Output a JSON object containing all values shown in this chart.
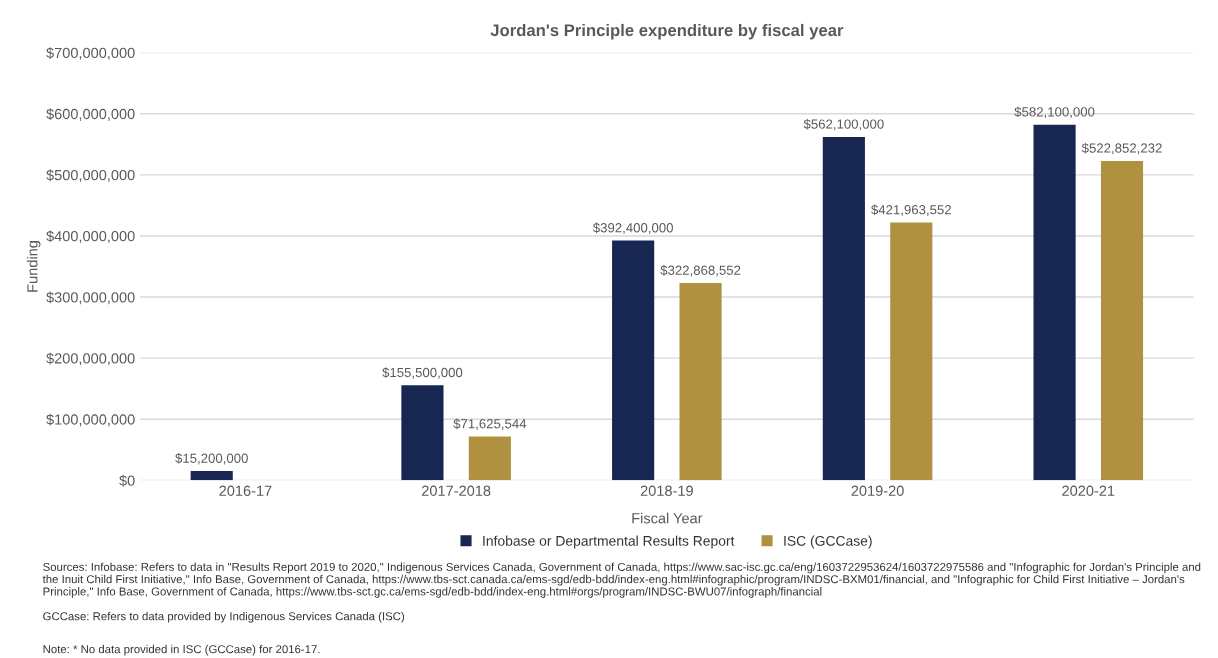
{
  "chart_data": {
    "type": "bar",
    "title": "Jordan's Principle expenditure by fiscal year",
    "xlabel": "Fiscal Year",
    "ylabel": "Funding",
    "categories": [
      "2016-17",
      "2017-2018",
      "2018-19",
      "2019-20",
      "2020-21"
    ],
    "series": [
      {
        "name": "Infobase or Departmental Results Report",
        "color": "#172751",
        "values": [
          15200000,
          155500000,
          392400000,
          562100000,
          582100000
        ],
        "value_labels": [
          "$15,200,000",
          "$155,500,000",
          "$392,400,000",
          "$562,100,000",
          "$582,100,000"
        ]
      },
      {
        "name": "ISC (GCCase)",
        "color": "#b09140",
        "values": [
          null,
          71625544,
          322868552,
          421963552,
          522852232
        ],
        "value_labels": [
          null,
          "$71,625,544",
          "$322,868,552",
          "$421,963,552",
          "$522,852,232"
        ]
      }
    ],
    "ylim": [
      0,
      700000000
    ],
    "yticks": [
      {
        "value": 0,
        "label": "$0"
      },
      {
        "value": 100000000,
        "label": "$100,000,000"
      },
      {
        "value": 200000000,
        "label": "$200,000,000"
      },
      {
        "value": 300000000,
        "label": "$300,000,000"
      },
      {
        "value": 400000000,
        "label": "$400,000,000"
      },
      {
        "value": 500000000,
        "label": "$500,000,000"
      },
      {
        "value": 600000000,
        "label": "$600,000,000"
      },
      {
        "value": 700000000,
        "label": "$700,000,000"
      }
    ],
    "grid": "y",
    "legend": "bottom",
    "annotations": [
      "Sources: Infobase: Refers to data in \"Results Report 2019 to 2020,\" Indigenous Services Canada, Government of Canada, https://www.sac-isc.gc.ca/eng/1603722953624/1603722975586 and \"Infographic for Jordan's Principle and the Inuit Child First Initiative,\" Info Base, Government of Canada, https://www.tbs-sct.canada.ca/ems-sgd/edb-bdd/index-eng.html#infographic/program/INDSC-BXM01/financial, and \"Infographic for Child First Initiative – Jordan's Principle,\" Info Base, Government of Canada, https://www.tbs-sct.gc.ca/ems-sgd/edb-bdd/index-eng.html#orgs/program/INDSC-BWU07/infograph/financial",
      "GCCase: Refers to data provided by Indigenous Services Canada (ISC)",
      "Note: * No data provided in ISC (GCCase) for 2016-17."
    ]
  }
}
